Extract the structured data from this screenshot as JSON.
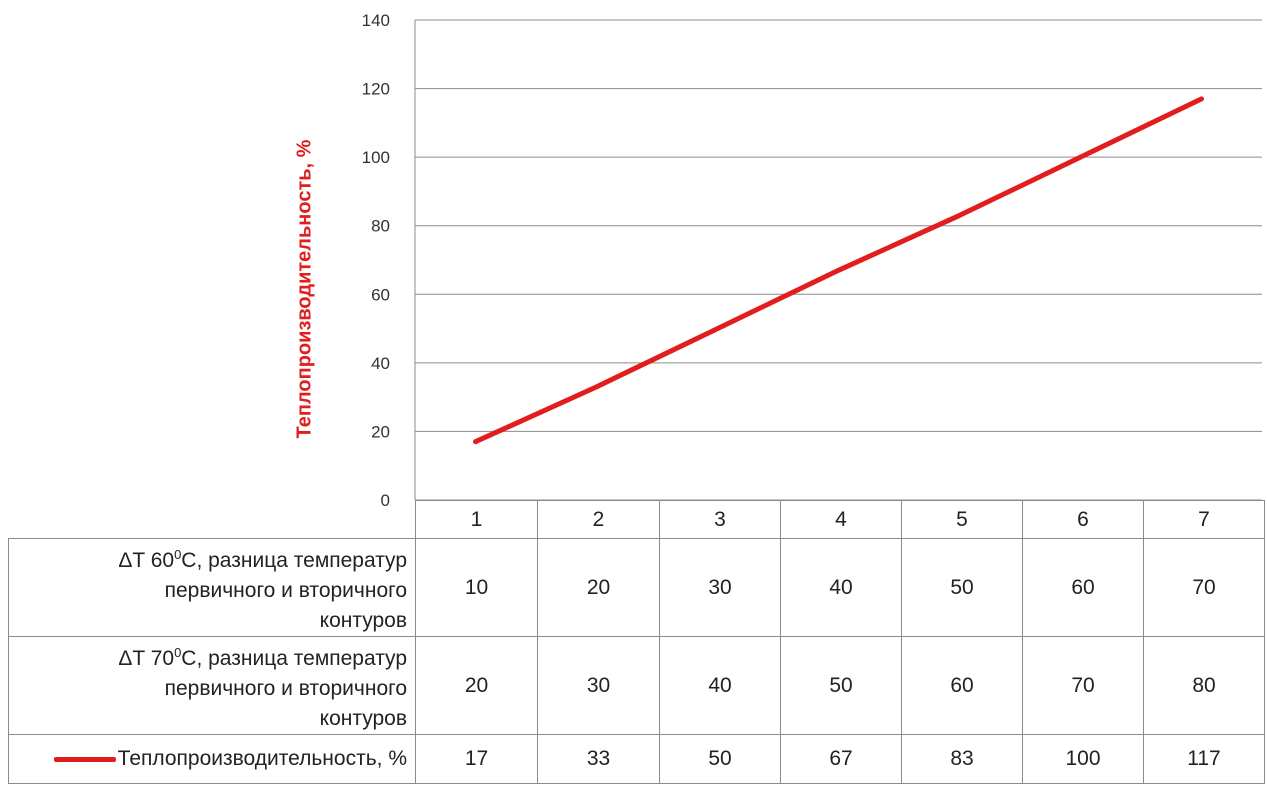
{
  "chart_data": {
    "type": "line",
    "categories": [
      "1",
      "2",
      "3",
      "4",
      "5",
      "6",
      "7"
    ],
    "ylabel": "Теплопроизводительность, %",
    "ylim": [
      0,
      140
    ],
    "yticks": [
      0,
      20,
      40,
      60,
      80,
      100,
      120,
      140
    ],
    "grid": true,
    "series": [
      {
        "name": "Теплопроизводительность, %",
        "color": "#e21d1d",
        "values": [
          17,
          33,
          50,
          67,
          83,
          100,
          117
        ]
      }
    ]
  },
  "table": {
    "rows": [
      {
        "label_prefix": "ΔT 60",
        "label_sup": "0",
        "label_suffix": "С, разница температур",
        "label_line2": "первичного и вторичного",
        "label_line3": "контуров",
        "values": [
          "10",
          "20",
          "30",
          "40",
          "50",
          "60",
          "70"
        ]
      },
      {
        "label_prefix": "ΔT 70",
        "label_sup": "0",
        "label_suffix": "С, разница температур",
        "label_line2": "первичного и вторичного",
        "label_line3": "контуров",
        "values": [
          "20",
          "30",
          "40",
          "50",
          "60",
          "70",
          "80"
        ]
      }
    ],
    "legend_values": [
      "17",
      "33",
      "50",
      "67",
      "83",
      "100",
      "117"
    ]
  }
}
